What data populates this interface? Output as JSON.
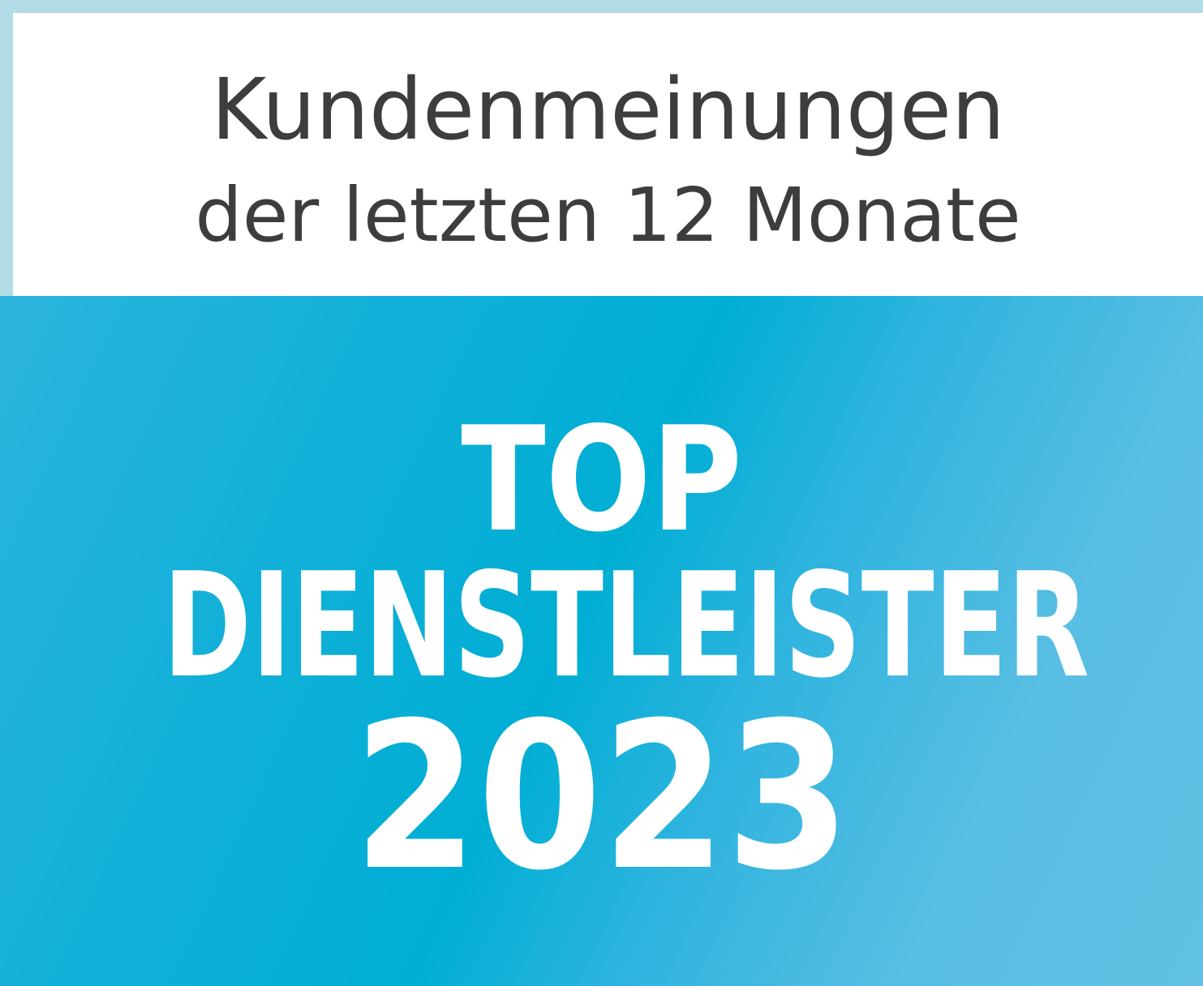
{
  "header": {
    "line1": "Kundenmeinungen",
    "line2": "der letzten 12 Monate"
  },
  "badge": {
    "line1": "TOP",
    "line2": "DIENSTLEISTER",
    "year": "2023"
  },
  "colors": {
    "border": "#b2dce6",
    "panel_blue": "#00aed4",
    "text_dark": "#3d3d3d",
    "text_light": "#ffffff"
  }
}
